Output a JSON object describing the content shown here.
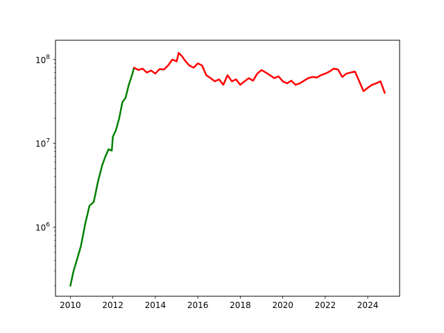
{
  "chart_data": {
    "type": "line",
    "title": "",
    "xlabel": "",
    "ylabel": "",
    "y_scale": "log",
    "xlim": [
      2009.3,
      2025.5
    ],
    "ylim": [
      150000,
      170000000
    ],
    "grid": false,
    "x_ticks": [
      {
        "value": 2010,
        "label": "2010"
      },
      {
        "value": 2012,
        "label": "2012"
      },
      {
        "value": 2014,
        "label": "2014"
      },
      {
        "value": 2016,
        "label": "2016"
      },
      {
        "value": 2018,
        "label": "2018"
      },
      {
        "value": 2020,
        "label": "2020"
      },
      {
        "value": 2022,
        "label": "2022"
      },
      {
        "value": 2024,
        "label": "2024"
      }
    ],
    "y_ticks": [
      {
        "value": 1000000,
        "base": "10",
        "exp": "6"
      },
      {
        "value": 10000000,
        "base": "10",
        "exp": "7"
      },
      {
        "value": 100000000,
        "base": "10",
        "exp": "8"
      }
    ],
    "series": [
      {
        "color": "#008000",
        "points": [
          [
            2010.0,
            200000
          ],
          [
            2010.15,
            300000
          ],
          [
            2010.3,
            400000
          ],
          [
            2010.5,
            600000
          ],
          [
            2010.7,
            1100000
          ],
          [
            2010.9,
            1800000
          ],
          [
            2011.1,
            2000000
          ],
          [
            2011.3,
            3500000
          ],
          [
            2011.5,
            5500000
          ],
          [
            2011.65,
            7000000
          ],
          [
            2011.8,
            8500000
          ],
          [
            2011.95,
            8200000
          ],
          [
            2012.0,
            12000000
          ],
          [
            2012.15,
            14500000
          ],
          [
            2012.3,
            20000000
          ],
          [
            2012.45,
            31000000
          ],
          [
            2012.6,
            35000000
          ],
          [
            2012.75,
            50000000
          ],
          [
            2012.9,
            65000000
          ],
          [
            2013.0,
            80000000
          ]
        ]
      },
      {
        "color": "#ff0000",
        "points": [
          [
            2013.0,
            80000000
          ],
          [
            2013.2,
            75000000
          ],
          [
            2013.4,
            78000000
          ],
          [
            2013.6,
            70000000
          ],
          [
            2013.8,
            74000000
          ],
          [
            2014.0,
            68000000
          ],
          [
            2014.2,
            77000000
          ],
          [
            2014.4,
            76000000
          ],
          [
            2014.6,
            85000000
          ],
          [
            2014.8,
            100000000
          ],
          [
            2015.0,
            95000000
          ],
          [
            2015.1,
            120000000
          ],
          [
            2015.25,
            110000000
          ],
          [
            2015.4,
            97000000
          ],
          [
            2015.6,
            85000000
          ],
          [
            2015.8,
            80000000
          ],
          [
            2016.0,
            90000000
          ],
          [
            2016.2,
            85000000
          ],
          [
            2016.4,
            65000000
          ],
          [
            2016.6,
            60000000
          ],
          [
            2016.8,
            55000000
          ],
          [
            2017.0,
            58000000
          ],
          [
            2017.2,
            50000000
          ],
          [
            2017.4,
            65000000
          ],
          [
            2017.6,
            55000000
          ],
          [
            2017.8,
            58000000
          ],
          [
            2018.0,
            50000000
          ],
          [
            2018.2,
            55000000
          ],
          [
            2018.4,
            60000000
          ],
          [
            2018.6,
            56000000
          ],
          [
            2018.8,
            68000000
          ],
          [
            2019.0,
            75000000
          ],
          [
            2019.2,
            70000000
          ],
          [
            2019.4,
            65000000
          ],
          [
            2019.6,
            60000000
          ],
          [
            2019.8,
            63000000
          ],
          [
            2020.0,
            55000000
          ],
          [
            2020.2,
            52000000
          ],
          [
            2020.4,
            56000000
          ],
          [
            2020.6,
            50000000
          ],
          [
            2020.8,
            52000000
          ],
          [
            2021.0,
            56000000
          ],
          [
            2021.2,
            60000000
          ],
          [
            2021.4,
            62000000
          ],
          [
            2021.6,
            61000000
          ],
          [
            2021.8,
            65000000
          ],
          [
            2022.0,
            68000000
          ],
          [
            2022.2,
            72000000
          ],
          [
            2022.4,
            78000000
          ],
          [
            2022.6,
            76000000
          ],
          [
            2022.8,
            62000000
          ],
          [
            2023.0,
            68000000
          ],
          [
            2023.2,
            70000000
          ],
          [
            2023.4,
            72000000
          ],
          [
            2023.6,
            55000000
          ],
          [
            2023.8,
            42000000
          ],
          [
            2024.0,
            46000000
          ],
          [
            2024.2,
            50000000
          ],
          [
            2024.4,
            52000000
          ],
          [
            2024.6,
            55000000
          ],
          [
            2024.8,
            40000000
          ]
        ]
      }
    ]
  }
}
